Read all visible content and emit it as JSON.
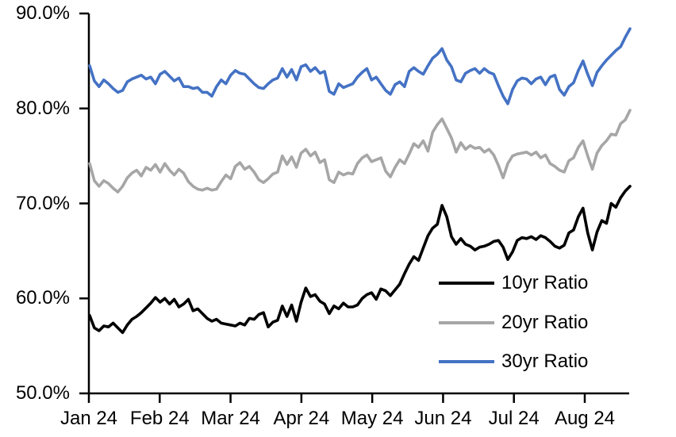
{
  "chart_data": {
    "type": "line",
    "title": "",
    "xlabel": "",
    "ylabel": "",
    "grid": false,
    "legend_position": "lower right",
    "ylim": [
      50,
      90
    ],
    "yticks": [
      {
        "value": 90,
        "label": "90.0%"
      },
      {
        "value": 80,
        "label": "80.0%"
      },
      {
        "value": 70,
        "label": "70.0%"
      },
      {
        "value": 60,
        "label": "60.0%"
      },
      {
        "value": 50,
        "label": "50.0%"
      }
    ],
    "xtick_labels": [
      "Jan 24",
      "Feb 24",
      "Mar 24",
      "Apr 24",
      "May 24",
      "Jun 24",
      "Jul 24",
      "Aug 24"
    ],
    "x_range_months": [
      0,
      7.64
    ],
    "axis_color": "#000000",
    "series": [
      {
        "name": "10yr Ratio",
        "color": "#000000",
        "values": [
          58.2,
          56.9,
          56.6,
          57.1,
          57.0,
          57.4,
          56.9,
          56.4,
          57.2,
          57.8,
          58.1,
          58.5,
          59.0,
          59.5,
          60.1,
          59.6,
          60.0,
          59.4,
          59.9,
          59.1,
          59.4,
          59.9,
          58.7,
          58.9,
          58.4,
          57.9,
          57.6,
          57.8,
          57.4,
          57.3,
          57.2,
          57.1,
          57.4,
          57.2,
          57.9,
          57.8,
          58.3,
          58.5,
          57.0,
          57.5,
          57.7,
          59.2,
          58.1,
          59.3,
          57.6,
          59.6,
          61.1,
          60.2,
          60.4,
          59.7,
          59.4,
          58.4,
          59.2,
          58.9,
          59.5,
          59.1,
          59.1,
          59.3,
          60.0,
          60.4,
          60.6,
          59.9,
          61.0,
          60.8,
          60.3,
          60.9,
          61.5,
          62.6,
          63.6,
          64.4,
          64.0,
          65.3,
          66.6,
          67.4,
          67.8,
          69.8,
          68.6,
          66.5,
          65.7,
          66.3,
          65.7,
          65.5,
          65.1,
          65.4,
          65.5,
          65.7,
          66.0,
          66.1,
          65.4,
          64.1,
          64.9,
          66.1,
          66.4,
          66.3,
          66.5,
          66.2,
          66.6,
          66.4,
          66.0,
          65.5,
          65.3,
          65.6,
          66.9,
          67.2,
          68.6,
          69.5,
          66.9,
          65.1,
          67.0,
          68.2,
          67.9,
          70.0,
          69.6,
          70.6,
          71.3,
          71.8
        ]
      },
      {
        "name": "20yr Ratio",
        "color": "#A6A6A6",
        "values": [
          74.2,
          72.4,
          71.8,
          72.4,
          72.1,
          71.6,
          71.2,
          71.8,
          72.7,
          73.2,
          73.5,
          72.9,
          73.8,
          73.5,
          74.1,
          73.3,
          74.2,
          73.5,
          73.0,
          73.6,
          73.2,
          72.3,
          71.8,
          71.5,
          71.4,
          71.6,
          71.4,
          71.5,
          72.3,
          73.0,
          72.6,
          73.9,
          74.3,
          73.6,
          73.9,
          73.3,
          72.5,
          72.2,
          72.6,
          73.1,
          73.3,
          75.0,
          74.1,
          74.9,
          73.8,
          75.3,
          75.7,
          75.0,
          75.4,
          74.3,
          74.6,
          72.5,
          72.2,
          73.3,
          73.0,
          73.2,
          73.1,
          74.2,
          74.8,
          75.1,
          74.4,
          74.6,
          74.8,
          73.4,
          72.8,
          73.8,
          74.6,
          74.2,
          75.2,
          76.3,
          75.9,
          76.6,
          75.5,
          77.5,
          78.3,
          78.9,
          77.9,
          76.9,
          75.4,
          76.4,
          75.7,
          76.1,
          75.8,
          75.9,
          75.4,
          75.7,
          75.1,
          74.0,
          72.7,
          74.2,
          75.0,
          75.2,
          75.3,
          75.4,
          75.1,
          75.4,
          74.8,
          75.1,
          74.2,
          73.9,
          73.5,
          73.3,
          74.5,
          74.8,
          75.9,
          76.6,
          75.0,
          73.6,
          75.3,
          76.1,
          76.6,
          77.3,
          77.2,
          78.4,
          78.8,
          79.8
        ]
      },
      {
        "name": "30yr Ratio",
        "color": "#4472C4",
        "values": [
          84.5,
          82.9,
          82.3,
          83.0,
          82.6,
          82.1,
          81.7,
          81.9,
          82.8,
          83.1,
          83.3,
          83.5,
          83.1,
          83.3,
          82.6,
          83.6,
          83.9,
          83.4,
          82.9,
          83.2,
          82.3,
          82.3,
          82.1,
          82.2,
          81.7,
          81.7,
          81.3,
          82.3,
          83.0,
          82.6,
          83.5,
          84.0,
          83.7,
          83.6,
          83.1,
          82.6,
          82.2,
          82.1,
          82.6,
          83.0,
          83.2,
          84.2,
          83.3,
          84.1,
          83.0,
          84.4,
          84.6,
          83.9,
          84.3,
          83.7,
          83.9,
          81.8,
          81.5,
          82.6,
          82.2,
          82.4,
          82.6,
          83.3,
          83.8,
          84.2,
          83.0,
          83.3,
          82.6,
          81.9,
          81.5,
          82.5,
          82.8,
          82.3,
          83.9,
          84.3,
          83.9,
          83.6,
          84.5,
          85.3,
          85.7,
          86.3,
          85.1,
          84.4,
          83.0,
          82.8,
          83.7,
          84.0,
          84.2,
          83.7,
          84.2,
          83.8,
          83.6,
          82.4,
          81.3,
          80.5,
          82.0,
          82.9,
          83.2,
          83.1,
          82.6,
          83.1,
          83.3,
          82.5,
          83.3,
          83.5,
          82.0,
          81.4,
          82.3,
          82.7,
          84.0,
          85.0,
          83.6,
          82.4,
          83.8,
          84.5,
          85.1,
          85.6,
          86.1,
          86.5,
          87.5,
          88.4
        ]
      }
    ]
  }
}
